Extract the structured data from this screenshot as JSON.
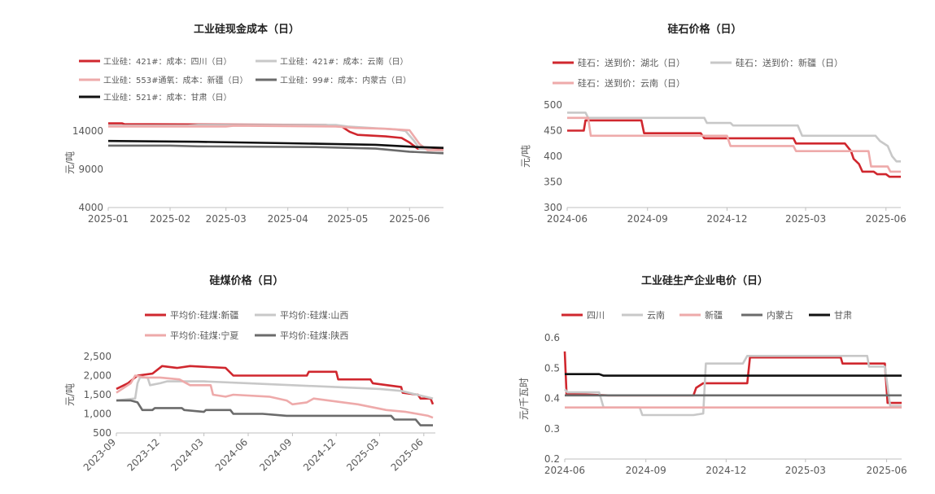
{
  "chart_data": [
    {
      "type": "line",
      "title": "工业硅现金成本（日）",
      "ylabel": "元/吨",
      "ylim": [
        4000,
        14000
      ],
      "yticks": [
        4000,
        9000,
        14000
      ],
      "xlim": [
        "2025-01-01",
        "2025-06-18"
      ],
      "xticks": [
        "2025-01",
        "2025-02",
        "2025-03",
        "2025-04",
        "2025-05",
        "2025-06"
      ],
      "legend_position": "top-left",
      "series": [
        {
          "name": "工业硅：421#：成本：四川（日）",
          "color": "#d0272e",
          "points": [
            [
              "2025-01-01",
              15000
            ],
            [
              "2025-01-08",
              15000
            ],
            [
              "2025-01-09",
              14900
            ],
            [
              "2025-04-20",
              14800
            ],
            [
              "2025-04-28",
              14600
            ],
            [
              "2025-05-02",
              13900
            ],
            [
              "2025-05-06",
              13500
            ],
            [
              "2025-05-20",
              13300
            ],
            [
              "2025-05-28",
              13100
            ],
            [
              "2025-06-01",
              12500
            ],
            [
              "2025-06-05",
              11700
            ],
            [
              "2025-06-18",
              11700
            ]
          ]
        },
        {
          "name": "工业硅：421#：成本：云南（日）",
          "color": "#c8c8c8",
          "points": [
            [
              "2025-01-01",
              14700
            ],
            [
              "2025-02-10",
              14700
            ],
            [
              "2025-02-15",
              14800
            ],
            [
              "2025-04-25",
              14800
            ],
            [
              "2025-05-01",
              14600
            ],
            [
              "2025-05-25",
              14200
            ],
            [
              "2025-05-30",
              14000
            ],
            [
              "2025-06-03",
              12800
            ],
            [
              "2025-06-06",
              11700
            ],
            [
              "2025-06-18",
              11400
            ]
          ]
        },
        {
          "name": "工业硅：553#通氧：成本：新疆（日）",
          "color": "#eeaaaa",
          "points": [
            [
              "2025-01-01",
              14600
            ],
            [
              "2025-03-01",
              14600
            ],
            [
              "2025-03-05",
              14700
            ],
            [
              "2025-04-25",
              14600
            ],
            [
              "2025-05-05",
              14400
            ],
            [
              "2025-05-20",
              14300
            ],
            [
              "2025-06-01",
              14100
            ],
            [
              "2025-06-06",
              12300
            ],
            [
              "2025-06-10",
              11500
            ],
            [
              "2025-06-18",
              11500
            ]
          ]
        },
        {
          "name": "工业硅：99#：成本：内蒙古（日）",
          "color": "#6b6b6b",
          "points": [
            [
              "2025-01-01",
              12100
            ],
            [
              "2025-02-01",
              12100
            ],
            [
              "2025-02-15",
              12000
            ],
            [
              "2025-04-15",
              11900
            ],
            [
              "2025-05-15",
              11700
            ],
            [
              "2025-06-01",
              11300
            ],
            [
              "2025-06-18",
              11100
            ]
          ]
        },
        {
          "name": "工业硅：521#：成本：甘肃（日）",
          "color": "#111111",
          "points": [
            [
              "2025-01-01",
              12700
            ],
            [
              "2025-02-15",
              12600
            ],
            [
              "2025-04-01",
              12400
            ],
            [
              "2025-05-15",
              12200
            ],
            [
              "2025-06-05",
              11900
            ],
            [
              "2025-06-18",
              11800
            ]
          ]
        }
      ]
    },
    {
      "type": "line",
      "title": "硅石价格（日）",
      "ylabel": "元/吨",
      "ylim": [
        300,
        500
      ],
      "yticks": [
        300,
        350,
        400,
        450,
        500
      ],
      "xlim": [
        "2024-06-01",
        "2025-06-18"
      ],
      "xticks": [
        "2024-06",
        "2024-09",
        "2024-12",
        "2025-03",
        "2025-06"
      ],
      "legend_position": "top-left",
      "series": [
        {
          "name": "硅石：送到价：湖北（日）",
          "color": "#d0272e",
          "points": [
            [
              "2024-06-01",
              450
            ],
            [
              "2024-06-20",
              450
            ],
            [
              "2024-06-22",
              470
            ],
            [
              "2024-08-25",
              470
            ],
            [
              "2024-08-28",
              445
            ],
            [
              "2024-11-01",
              445
            ],
            [
              "2024-11-05",
              435
            ],
            [
              "2025-02-15",
              435
            ],
            [
              "2025-02-18",
              425
            ],
            [
              "2025-04-15",
              425
            ],
            [
              "2025-04-22",
              410
            ],
            [
              "2025-04-25",
              395
            ],
            [
              "2025-05-01",
              385
            ],
            [
              "2025-05-05",
              370
            ],
            [
              "2025-05-18",
              370
            ],
            [
              "2025-05-22",
              365
            ],
            [
              "2025-06-01",
              365
            ],
            [
              "2025-06-05",
              360
            ],
            [
              "2025-06-18",
              360
            ]
          ]
        },
        {
          "name": "硅石：送到价：新疆（日）",
          "color": "#c8c8c8",
          "points": [
            [
              "2024-06-01",
              485
            ],
            [
              "2024-06-22",
              485
            ],
            [
              "2024-06-25",
              475
            ],
            [
              "2024-11-05",
              475
            ],
            [
              "2024-11-08",
              465
            ],
            [
              "2024-12-05",
              465
            ],
            [
              "2024-12-08",
              460
            ],
            [
              "2025-02-20",
              460
            ],
            [
              "2025-02-25",
              440
            ],
            [
              "2025-05-20",
              440
            ],
            [
              "2025-05-25",
              430
            ],
            [
              "2025-06-03",
              420
            ],
            [
              "2025-06-08",
              400
            ],
            [
              "2025-06-13",
              390
            ],
            [
              "2025-06-18",
              390
            ]
          ]
        },
        {
          "name": "硅石：送到价：云南（日）",
          "color": "#eeaaaa",
          "points": [
            [
              "2024-06-01",
              475
            ],
            [
              "2024-06-25",
              475
            ],
            [
              "2024-06-28",
              440
            ],
            [
              "2024-12-01",
              440
            ],
            [
              "2024-12-05",
              420
            ],
            [
              "2025-02-15",
              420
            ],
            [
              "2025-02-18",
              410
            ],
            [
              "2025-05-12",
              410
            ],
            [
              "2025-05-15",
              380
            ],
            [
              "2025-06-03",
              380
            ],
            [
              "2025-06-06",
              370
            ],
            [
              "2025-06-18",
              370
            ]
          ]
        }
      ]
    },
    {
      "type": "line",
      "title": "硅煤价格（日）",
      "ylabel": "元/吨",
      "ylim": [
        500,
        2500
      ],
      "yticks": [
        500,
        1000,
        1500,
        2000,
        2500
      ],
      "ytick_labels": [
        "500",
        "1,000",
        "1,500",
        "2,000",
        "2,500"
      ],
      "xlim": [
        "2023-09-01",
        "2025-06-25"
      ],
      "xticks": [
        "2023-09",
        "2023-12",
        "2024-03",
        "2024-06",
        "2024-09",
        "2024-12",
        "2025-03",
        "2025-06"
      ],
      "legend_position": "top-left",
      "series": [
        {
          "name": "平均价:硅煤:新疆",
          "color": "#d0272e",
          "points": [
            [
              "2023-09-01",
              1650
            ],
            [
              "2023-09-25",
              1800
            ],
            [
              "2023-10-15",
              2000
            ],
            [
              "2023-11-15",
              2050
            ],
            [
              "2023-12-05",
              2250
            ],
            [
              "2024-01-05",
              2200
            ],
            [
              "2024-02-01",
              2250
            ],
            [
              "2024-04-15",
              2200
            ],
            [
              "2024-05-01",
              2000
            ],
            [
              "2024-10-01",
              2000
            ],
            [
              "2024-10-05",
              2100
            ],
            [
              "2024-12-01",
              2100
            ],
            [
              "2024-12-05",
              1900
            ],
            [
              "2025-02-10",
              1900
            ],
            [
              "2025-02-15",
              1800
            ],
            [
              "2025-04-15",
              1700
            ],
            [
              "2025-04-18",
              1550
            ],
            [
              "2025-05-20",
              1500
            ],
            [
              "2025-05-25",
              1400
            ],
            [
              "2025-06-15",
              1400
            ],
            [
              "2025-06-20",
              1250
            ]
          ]
        },
        {
          "name": "平均价:硅煤:山西",
          "color": "#c8c8c8",
          "points": [
            [
              "2023-09-01",
              1350
            ],
            [
              "2023-10-10",
              1400
            ],
            [
              "2023-10-15",
              1800
            ],
            [
              "2023-10-20",
              1950
            ],
            [
              "2023-11-05",
              1950
            ],
            [
              "2023-11-10",
              1750
            ],
            [
              "2023-12-01",
              1800
            ],
            [
              "2023-12-15",
              1850
            ],
            [
              "2024-03-01",
              1850
            ],
            [
              "2024-06-01",
              1800
            ],
            [
              "2024-09-01",
              1750
            ],
            [
              "2024-12-01",
              1700
            ],
            [
              "2025-03-01",
              1650
            ],
            [
              "2025-04-15",
              1600
            ],
            [
              "2025-06-20",
              1400
            ]
          ]
        },
        {
          "name": "平均价:硅煤:宁夏",
          "color": "#eeaaaa",
          "points": [
            [
              "2023-09-01",
              1550
            ],
            [
              "2023-10-01",
              1800
            ],
            [
              "2023-10-10",
              2000
            ],
            [
              "2023-11-01",
              1950
            ],
            [
              "2023-12-01",
              1950
            ],
            [
              "2024-01-10",
              1900
            ],
            [
              "2024-02-01",
              1750
            ],
            [
              "2024-03-15",
              1750
            ],
            [
              "2024-03-20",
              1500
            ],
            [
              "2024-04-15",
              1450
            ],
            [
              "2024-05-01",
              1500
            ],
            [
              "2024-07-15",
              1450
            ],
            [
              "2024-08-20",
              1350
            ],
            [
              "2024-09-01",
              1250
            ],
            [
              "2024-10-01",
              1300
            ],
            [
              "2024-10-15",
              1400
            ],
            [
              "2024-12-15",
              1300
            ],
            [
              "2025-01-15",
              1250
            ],
            [
              "2025-03-15",
              1100
            ],
            [
              "2025-04-25",
              1050
            ],
            [
              "2025-06-10",
              950
            ],
            [
              "2025-06-20",
              900
            ]
          ]
        },
        {
          "name": "平均价:硅煤:陕西",
          "color": "#6b6b6b",
          "points": [
            [
              "2023-09-01",
              1350
            ],
            [
              "2023-10-01",
              1350
            ],
            [
              "2023-10-15",
              1300
            ],
            [
              "2023-10-25",
              1100
            ],
            [
              "2023-11-15",
              1100
            ],
            [
              "2023-11-20",
              1150
            ],
            [
              "2024-01-15",
              1150
            ],
            [
              "2024-01-20",
              1100
            ],
            [
              "2024-03-01",
              1050
            ],
            [
              "2024-03-05",
              1100
            ],
            [
              "2024-04-25",
              1100
            ],
            [
              "2024-05-01",
              1000
            ],
            [
              "2024-07-01",
              1000
            ],
            [
              "2024-08-20",
              950
            ],
            [
              "2025-03-25",
              950
            ],
            [
              "2025-04-01",
              850
            ],
            [
              "2025-05-15",
              850
            ],
            [
              "2025-05-25",
              700
            ],
            [
              "2025-06-20",
              700
            ]
          ]
        }
      ]
    },
    {
      "type": "line",
      "title": "工业硅生产企业电价（日）",
      "ylabel": "元/千瓦时",
      "ylim": [
        0.2,
        0.6
      ],
      "yticks": [
        0.2,
        0.3,
        0.4,
        0.5,
        0.6
      ],
      "xlim": [
        "2024-06-01",
        "2025-06-18"
      ],
      "xticks": [
        "2024-06",
        "2024-09",
        "2024-12",
        "2025-03",
        "2025-06"
      ],
      "legend_position": "top-left",
      "series": [
        {
          "name": "四川",
          "color": "#d0272e",
          "points": [
            [
              "2024-06-01",
              0.555
            ],
            [
              "2024-06-03",
              0.415
            ],
            [
              "2024-07-20",
              0.41
            ],
            [
              "2024-10-25",
              0.41
            ],
            [
              "2024-10-28",
              0.435
            ],
            [
              "2024-11-05",
              0.45
            ],
            [
              "2024-12-25",
              0.45
            ],
            [
              "2024-12-28",
              0.535
            ],
            [
              "2025-04-10",
              0.535
            ],
            [
              "2025-04-12",
              0.515
            ],
            [
              "2025-05-30",
              0.515
            ],
            [
              "2025-06-02",
              0.385
            ],
            [
              "2025-06-18",
              0.385
            ]
          ]
        },
        {
          "name": "云南",
          "color": "#c8c8c8",
          "points": [
            [
              "2024-06-01",
              0.43
            ],
            [
              "2024-06-04",
              0.42
            ],
            [
              "2024-07-10",
              0.42
            ],
            [
              "2024-07-15",
              0.37
            ],
            [
              "2024-08-25",
              0.37
            ],
            [
              "2024-08-28",
              0.345
            ],
            [
              "2024-10-25",
              0.345
            ],
            [
              "2024-11-05",
              0.35
            ],
            [
              "2024-11-08",
              0.515
            ],
            [
              "2024-12-20",
              0.515
            ],
            [
              "2024-12-25",
              0.54
            ],
            [
              "2025-05-10",
              0.54
            ],
            [
              "2025-05-12",
              0.505
            ],
            [
              "2025-05-30",
              0.505
            ],
            [
              "2025-06-05",
              0.375
            ],
            [
              "2025-06-18",
              0.375
            ]
          ]
        },
        {
          "name": "新疆",
          "color": "#eeaaaa",
          "points": [
            [
              "2024-06-01",
              0.37
            ],
            [
              "2025-06-18",
              0.37
            ]
          ]
        },
        {
          "name": "内蒙古",
          "color": "#6b6b6b",
          "points": [
            [
              "2024-06-01",
              0.41
            ],
            [
              "2025-06-18",
              0.41
            ]
          ]
        },
        {
          "name": "甘肃",
          "color": "#111111",
          "points": [
            [
              "2024-06-01",
              0.48
            ],
            [
              "2024-07-10",
              0.48
            ],
            [
              "2024-07-15",
              0.475
            ],
            [
              "2025-06-18",
              0.475
            ]
          ]
        }
      ]
    }
  ]
}
